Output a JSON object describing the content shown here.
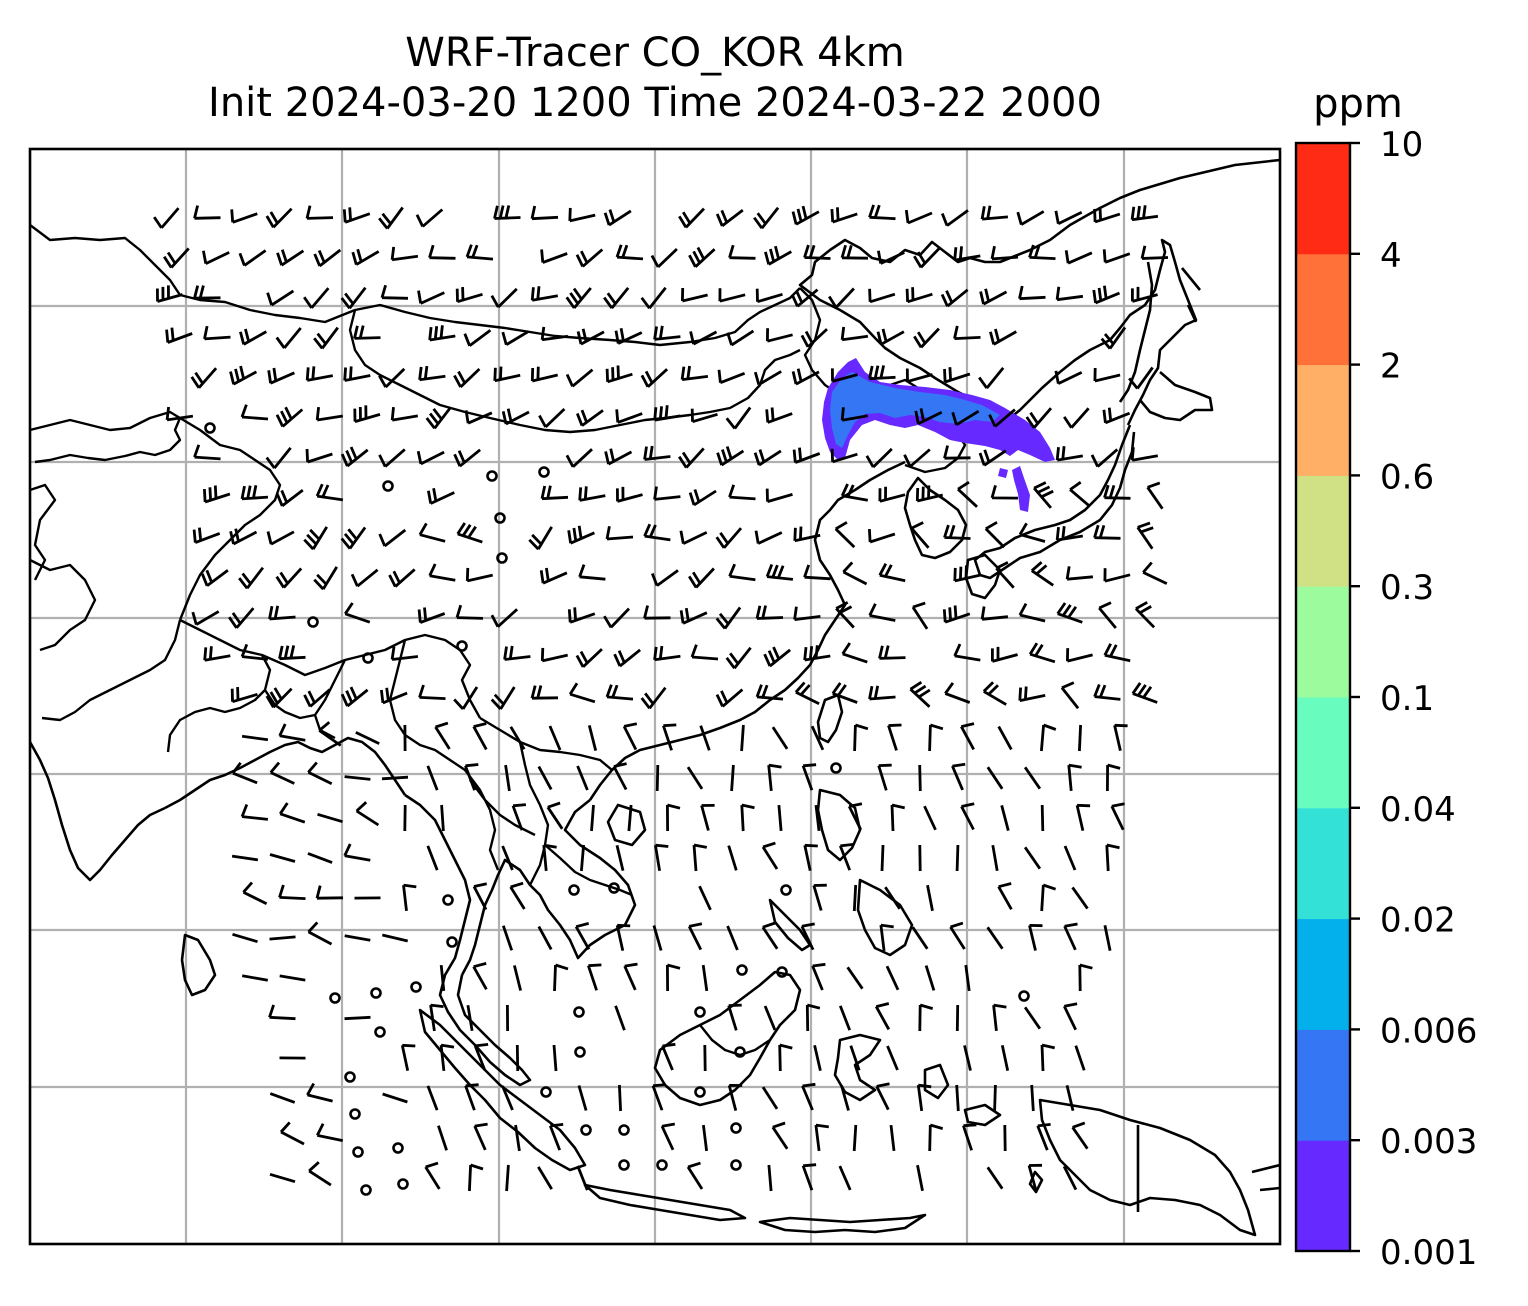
{
  "title_line1": "WRF-Tracer CO_KOR 4km",
  "title_line2": "Init 2024-03-20 1200 Time 2024-03-22 2000",
  "colorbar": {
    "unit": "ppm",
    "levels": [
      "0.001",
      "0.003",
      "0.006",
      "0.02",
      "0.04",
      "0.1",
      "0.3",
      "0.6",
      "2",
      "4",
      "10"
    ],
    "colors": [
      "#6629ff",
      "#3476f4",
      "#03b0ec",
      "#34e1d7",
      "#68fcbf",
      "#9cfb9c",
      "#d0e185",
      "#ffb066",
      "#ff7139",
      "#ff2b15"
    ]
  },
  "map": {
    "graticule": "on",
    "overlays": [
      "coastlines",
      "country borders",
      "wind barbs",
      "CO tracer plume"
    ],
    "plume_color": "#6629ff",
    "plume_core_color": "#3476f4"
  }
}
